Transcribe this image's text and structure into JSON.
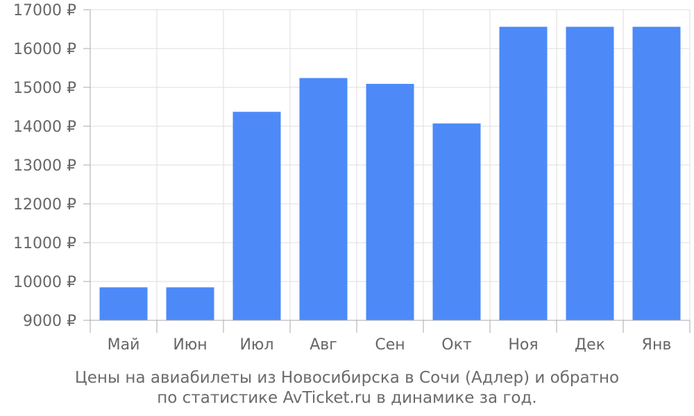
{
  "chart_data": {
    "type": "bar",
    "categories": [
      "Май",
      "Июн",
      "Июл",
      "Авг",
      "Сен",
      "Окт",
      "Ноя",
      "Дек",
      "Янв"
    ],
    "values": [
      9850,
      9850,
      14370,
      15240,
      15090,
      14070,
      16560,
      16560,
      16560
    ],
    "ylim": [
      9000,
      17000
    ],
    "yticks": [
      9000,
      10000,
      11000,
      12000,
      13000,
      14000,
      15000,
      16000,
      17000
    ],
    "ytick_suffix": " ₽",
    "grid": true,
    "bar_color": "#4d8af8",
    "grid_color": "#dddddd",
    "axis_color": "#aaaaaa",
    "text_color": "#666666",
    "title": ""
  },
  "caption": {
    "line1": "Цены на авиабилеты из Новосибирска в Сочи (Адлер) и обратно",
    "line2": "по статистике AvTicket.ru в динамике за год."
  }
}
